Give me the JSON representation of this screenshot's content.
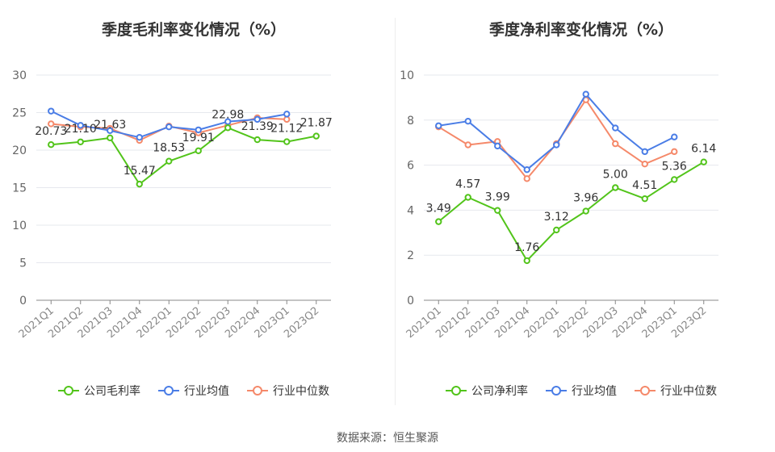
{
  "chart_data": [
    {
      "type": "line",
      "title": "季度毛利率变化情况（%）",
      "categories": [
        "2021Q1",
        "2021Q2",
        "2021Q3",
        "2021Q4",
        "2022Q1",
        "2022Q2",
        "2022Q3",
        "2022Q4",
        "2023Q1",
        "2023Q2"
      ],
      "ylim": [
        0,
        30
      ],
      "yticks": [
        0,
        5,
        10,
        15,
        20,
        25,
        30
      ],
      "grid": true,
      "legend_position": "bottom",
      "series": [
        {
          "name": "公司毛利率",
          "color": "#52c41a",
          "labeled": true,
          "values": [
            20.73,
            21.1,
            21.63,
            15.47,
            18.53,
            19.91,
            22.98,
            21.39,
            21.12,
            21.87
          ]
        },
        {
          "name": "行业均值",
          "color": "#4a7de6",
          "labeled": false,
          "values": [
            25.2,
            23.3,
            22.6,
            21.7,
            23.1,
            22.7,
            23.8,
            24.1,
            24.8,
            null
          ]
        },
        {
          "name": "行业中位数",
          "color": "#f5896a",
          "labeled": false,
          "values": [
            23.5,
            23.1,
            22.9,
            21.3,
            23.2,
            22.3,
            23.3,
            24.3,
            24.1,
            null
          ]
        }
      ]
    },
    {
      "type": "line",
      "title": "季度净利率变化情况（%）",
      "categories": [
        "2021Q1",
        "2021Q2",
        "2021Q3",
        "2021Q4",
        "2022Q1",
        "2022Q2",
        "2022Q3",
        "2022Q4",
        "2023Q1",
        "2023Q2"
      ],
      "ylim": [
        0,
        10
      ],
      "yticks": [
        0,
        2,
        4,
        6,
        8,
        10
      ],
      "grid": true,
      "legend_position": "bottom",
      "series": [
        {
          "name": "公司净利率",
          "color": "#52c41a",
          "labeled": true,
          "values": [
            3.49,
            4.57,
            3.99,
            1.76,
            3.12,
            3.96,
            5.0,
            4.51,
            5.36,
            6.14
          ]
        },
        {
          "name": "行业均值",
          "color": "#4a7de6",
          "labeled": false,
          "values": [
            7.75,
            7.95,
            6.85,
            5.8,
            6.9,
            9.15,
            7.65,
            6.6,
            7.25,
            null
          ]
        },
        {
          "name": "行业中位数",
          "color": "#f5896a",
          "labeled": false,
          "values": [
            7.7,
            6.9,
            7.05,
            5.4,
            6.95,
            8.9,
            6.95,
            6.05,
            6.6,
            null
          ]
        }
      ]
    }
  ],
  "source": "数据来源：恒生聚源"
}
